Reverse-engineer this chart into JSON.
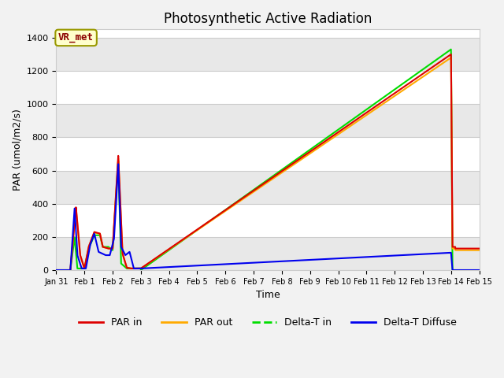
{
  "title": "Photosynthetic Active Radiation",
  "xlabel": "Time",
  "ylabel": "PAR (umol/m2/s)",
  "ylim": [
    0,
    1450
  ],
  "figure_bg": "#f2f2f2",
  "plot_bg_white": "#ffffff",
  "plot_bg_gray": "#e8e8e8",
  "legend_label": "VR_met",
  "legend_label_color": "#8b0000",
  "legend_box_face": "#ffffcc",
  "legend_box_edge": "#999900",
  "series": {
    "PAR_in": {
      "color": "#dd0000",
      "label": "PAR in",
      "linestyle": "-",
      "linewidth": 1.5
    },
    "PAR_out": {
      "color": "#ffaa00",
      "label": "PAR out",
      "linestyle": "-",
      "linewidth": 1.5
    },
    "Delta_T_in": {
      "color": "#00dd00",
      "label": "Delta-T in",
      "linestyle": "-",
      "linewidth": 1.5
    },
    "Delta_T_Diffuse": {
      "color": "#0000ee",
      "label": "Delta-T Diffuse",
      "linestyle": "-",
      "linewidth": 1.5
    }
  },
  "xtick_labels": [
    "Jan 31",
    "Feb 1",
    "Feb 2",
    "Feb 3",
    "Feb 4",
    "Feb 5",
    "Feb 6",
    "Feb 7",
    "Feb 8",
    "Feb 9",
    "Feb 10",
    "Feb 11",
    "Feb 12",
    "Feb 13",
    "Feb 14",
    "Feb 15"
  ],
  "ytick_labels": [
    0,
    200,
    400,
    600,
    800,
    1000,
    1200,
    1400
  ],
  "grid_color": "#cccccc",
  "grid_lw": 0.8
}
